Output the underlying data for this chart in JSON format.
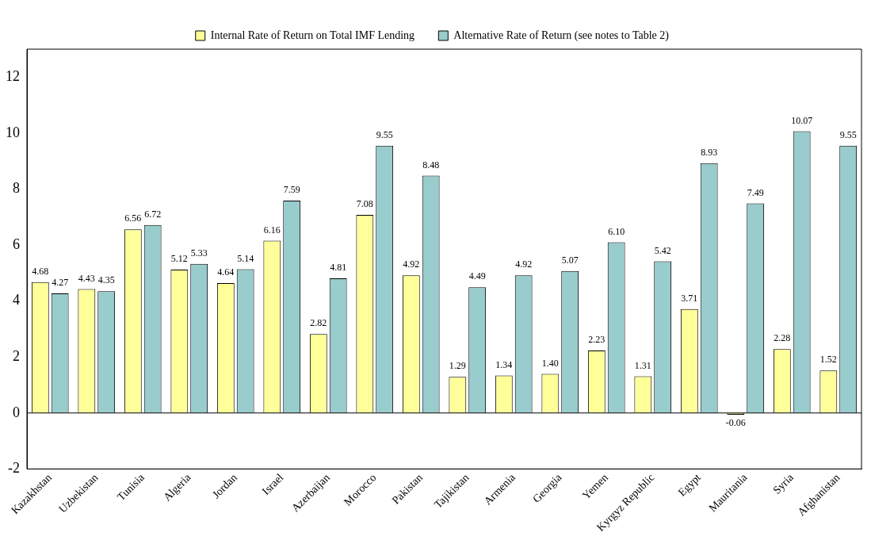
{
  "chart_data": {
    "type": "bar",
    "categories": [
      "Kazakhstan",
      "Uzbekistan",
      "Tunisia",
      "Algeria",
      "Jordan",
      "Israel",
      "Azerbaijan",
      "Morocco",
      "Pakistan",
      "Tajikistan",
      "Armenia",
      "Georgia",
      "Yemen",
      "Kyrgyz Republic",
      "Egypt",
      "Mauritania",
      "Syria",
      "Afghanistan"
    ],
    "series": [
      {
        "name": "Internal Rate of Return on Total IMF Lending",
        "color": "#ffff99",
        "values": [
          4.68,
          4.43,
          6.56,
          5.12,
          4.64,
          6.16,
          2.82,
          7.08,
          4.92,
          1.29,
          1.34,
          1.4,
          2.23,
          1.31,
          3.71,
          -0.06,
          2.28,
          1.52
        ],
        "value_labels": [
          "4.68",
          "4.43",
          "6.56",
          "5.12",
          "4.64",
          "6.16",
          "2.82",
          "7.08",
          "4.92",
          "1.29",
          "1.34",
          "1.40",
          "2.23",
          "1.31",
          "3.71",
          "-0.06",
          "2.28",
          "1.52"
        ]
      },
      {
        "name": "Alternative Rate of Return (see notes to Table 2)",
        "color": "#99cccc",
        "values": [
          4.27,
          4.35,
          6.72,
          5.33,
          5.14,
          7.59,
          4.81,
          9.55,
          8.48,
          4.49,
          4.92,
          5.07,
          6.1,
          5.42,
          8.93,
          7.49,
          10.07,
          9.55
        ],
        "value_labels": [
          "4.27",
          "4.35",
          "6.72",
          "5.33",
          "5.14",
          "7.59",
          "4.81",
          "9.55",
          "8.48",
          "4.49",
          "4.92",
          "5.07",
          "6.10",
          "5.42",
          "8.93",
          "7.49",
          "10.07",
          "9.55"
        ]
      }
    ],
    "ylim": [
      -2,
      13
    ],
    "yticks": [
      -2,
      0,
      2,
      4,
      6,
      8,
      10,
      12
    ],
    "grid": false,
    "legend": "top",
    "ref_lines": [
      {
        "axis": "y",
        "value": 0,
        "color": "#000000"
      }
    ]
  }
}
